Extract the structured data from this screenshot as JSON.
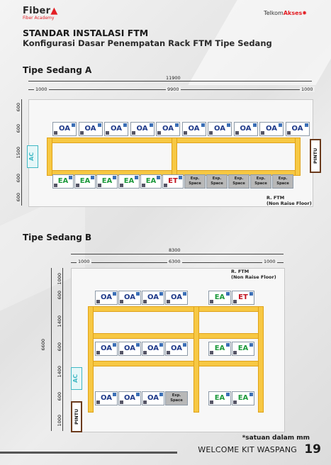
{
  "header": {
    "logo_left_main": "Fiber",
    "logo_left_sub": "Fiber Academy",
    "logo_right_a": "Telkom",
    "logo_right_b": "Akses"
  },
  "title": "STANDAR INSTALASI FTM",
  "subtitle": "Konfigurasi Dasar Penempatan Rack FTM Tipe Sedang",
  "section_a": {
    "heading": "Tipe Sedang A",
    "dim_total": "11900",
    "dim_left": "1000",
    "dim_mid": "9900",
    "dim_right": "1000",
    "vdims": [
      "600",
      "600",
      "1500",
      "600",
      "600"
    ],
    "top_row": [
      "OA",
      "OA",
      "OA",
      "OA",
      "OA",
      "OA",
      "OA",
      "OA",
      "OA",
      "OA"
    ],
    "bottom_row": [
      "EA",
      "EA",
      "EA",
      "EA",
      "EA",
      "ET",
      "Exp. Space",
      "Exp. Space",
      "Exp. Space",
      "Exp. Space",
      "Exp. Space"
    ],
    "ac": "AC",
    "door": "PINTU",
    "room_label_1": "R. FTM",
    "room_label_2": "(Non Raise Floor)"
  },
  "section_b": {
    "heading": "Tipe Sedang B",
    "dim_total": "8300",
    "dim_left": "1000",
    "dim_mid": "6300",
    "dim_right": "1000",
    "vdim_total": "6600",
    "vdims": [
      "1000",
      "600",
      "1400",
      "600",
      "1400",
      "600",
      "1000"
    ],
    "row1_left": [
      "OA",
      "OA",
      "OA",
      "OA"
    ],
    "row1_right": [
      "EA",
      "ET"
    ],
    "row2_left": [
      "OA",
      "OA",
      "OA",
      "OA"
    ],
    "row2_right": [
      "EA",
      "EA"
    ],
    "row3_left": [
      "OA",
      "OA",
      "OA",
      "Exp. Space"
    ],
    "row3_right": [
      "EA",
      "EA"
    ],
    "ac": "AC",
    "door": "PINTU",
    "room_label_1": "R. FTM",
    "room_label_2": "(Non Raise Floor)"
  },
  "note": "*satuan dalam mm",
  "footer": "WELCOME KIT WASPANG",
  "page_number": "19"
}
